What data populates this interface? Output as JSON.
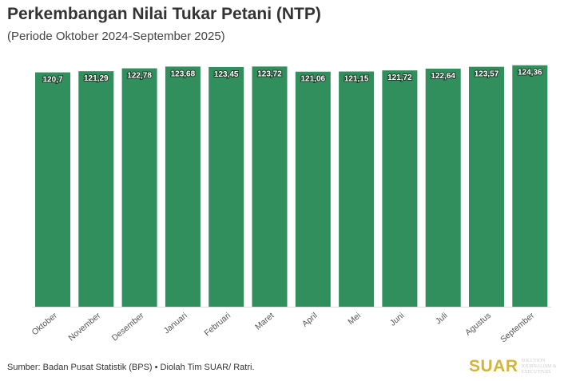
{
  "chart_data": {
    "type": "bar",
    "title": "Perkembangan Nilai Tukar Petani (NTP)",
    "subtitle": "(Periode Oktober 2024-September 2025)",
    "categories": [
      "Oktober",
      "November",
      "Desember",
      "Januari",
      "Februari",
      "Maret",
      "April",
      "Mei",
      "Juni",
      "Juli",
      "Agustus",
      "September"
    ],
    "values": [
      120.7,
      121.29,
      122.78,
      123.68,
      123.45,
      123.72,
      121.06,
      121.15,
      121.72,
      122.64,
      123.57,
      124.36
    ],
    "data_labels": [
      "120,7",
      "121,29",
      "122,78",
      "123,68",
      "123,45",
      "123,72",
      "121,06",
      "121,15",
      "121,72",
      "122,64",
      "123,57",
      "124,36"
    ],
    "ylim": [
      0,
      130
    ],
    "grid": false,
    "xlabel": "",
    "ylabel": "",
    "bar_color": "#318f5d"
  },
  "source": "Sumber: Badan Pusat Statistik (BPS) • Diolah Tim SUAR/ Ratri.",
  "logo": {
    "name": "SUAR",
    "tagline": "SOLUTION JOURNALISM & EXECUTIVES"
  }
}
